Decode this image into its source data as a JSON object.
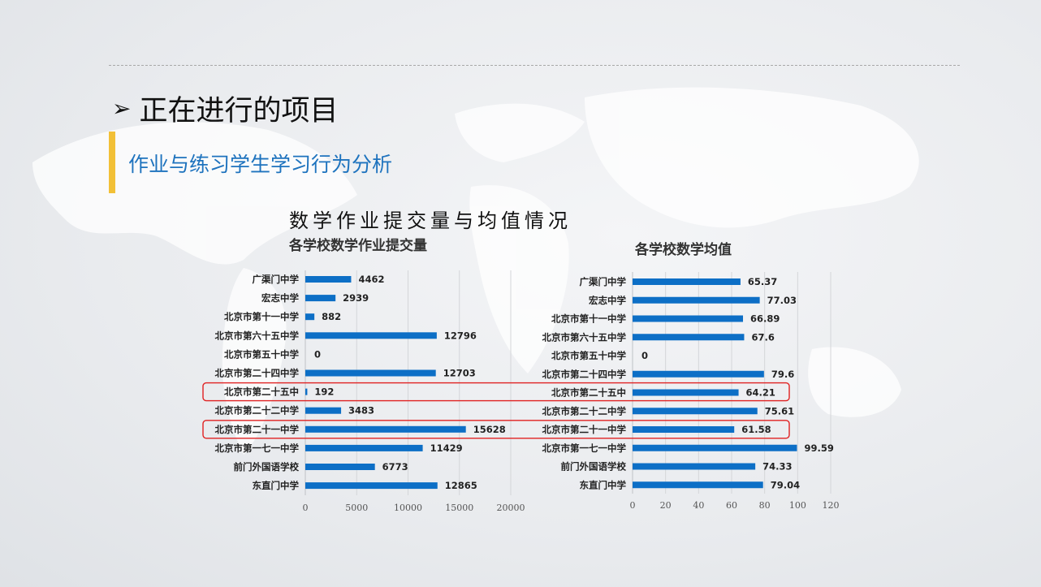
{
  "slide": {
    "arrow": "➢",
    "title": "正在进行的项目",
    "subtitle": "作业与练习学生学习行为分析",
    "main_title": "数学作业提交量与均值情况"
  },
  "colors": {
    "bar": "#0d6fc6",
    "accent": "#f2c037",
    "highlight": "#e02020",
    "subtitle": "#1e73be"
  },
  "chart_data": [
    {
      "type": "bar",
      "orientation": "horizontal",
      "title": "各学校数学作业提交量",
      "categories": [
        "广渠门中学",
        "宏志中学",
        "北京市第十一中学",
        "北京市第六十五中学",
        "北京市第五十中学",
        "北京市第二十四中学",
        "北京市第二十五中",
        "北京市第二十二中学",
        "北京市第二十一中学",
        "北京市第一七一中学",
        "前门外国语学校",
        "东直门中学"
      ],
      "values": [
        4462,
        2939,
        882,
        12796,
        0,
        12703,
        192,
        3483,
        15628,
        11429,
        6773,
        12865
      ],
      "xlim": [
        0,
        20000
      ],
      "ticks": [
        0,
        5000,
        10000,
        15000,
        20000
      ],
      "highlighted": [
        "北京市第二十五中",
        "北京市第二十一中学"
      ]
    },
    {
      "type": "bar",
      "orientation": "horizontal",
      "title": "各学校数学均值",
      "categories": [
        "广渠门中学",
        "宏志中学",
        "北京市第十一中学",
        "北京市第六十五中学",
        "北京市第五十中学",
        "北京市第二十四中学",
        "北京市第二十五中",
        "北京市第二十二中学",
        "北京市第二十一中学",
        "北京市第一七一中学",
        "前门外国语学校",
        "东直门中学"
      ],
      "values": [
        65.37,
        77.03,
        66.89,
        67.6,
        0,
        79.6,
        64.21,
        75.61,
        61.58,
        99.59,
        74.33,
        79.04
      ],
      "xlim": [
        0,
        120
      ],
      "ticks": [
        0,
        20,
        40,
        60,
        80,
        100,
        120
      ],
      "highlighted": [
        "北京市第二十五中",
        "北京市第二十一中学"
      ]
    }
  ]
}
